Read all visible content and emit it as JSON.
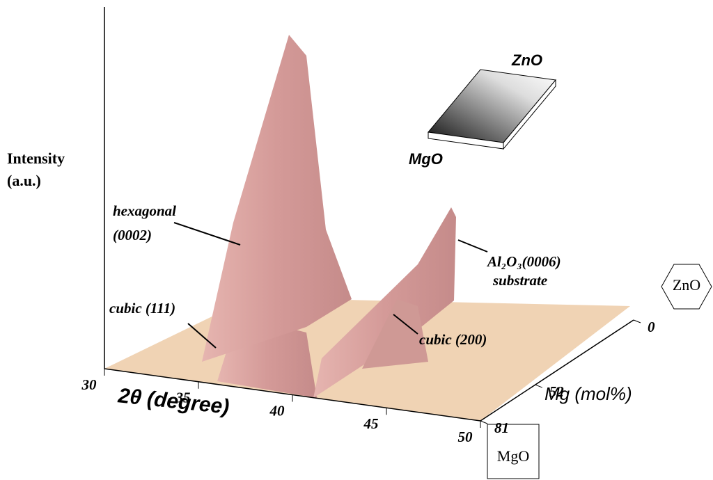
{
  "chart_data": {
    "type": "surface",
    "ylabel": [
      "Intensity",
      "(a.u.)"
    ],
    "xlabel": "2θ (degree)",
    "zlabel": "Mg (mol%)",
    "xlim": [
      30,
      50
    ],
    "xticks": [
      30,
      35,
      40,
      45,
      50
    ],
    "zlim": [
      0,
      81
    ],
    "zticks": [
      0,
      52,
      81
    ],
    "color": "#d8a0a0",
    "floor_color": "#f0d3b4",
    "annotations": {
      "hexagonal": [
        "hexagonal",
        "(0002)"
      ],
      "cubic111": "cubic (111)",
      "substrate": [
        "Al₂O₃(0006)",
        "substrate"
      ],
      "cubic200": "cubic (200)"
    },
    "inset": {
      "top": "ZnO",
      "bottom": "MgO"
    },
    "end_labels": {
      "back": "ZnO",
      "front": "MgO"
    }
  }
}
